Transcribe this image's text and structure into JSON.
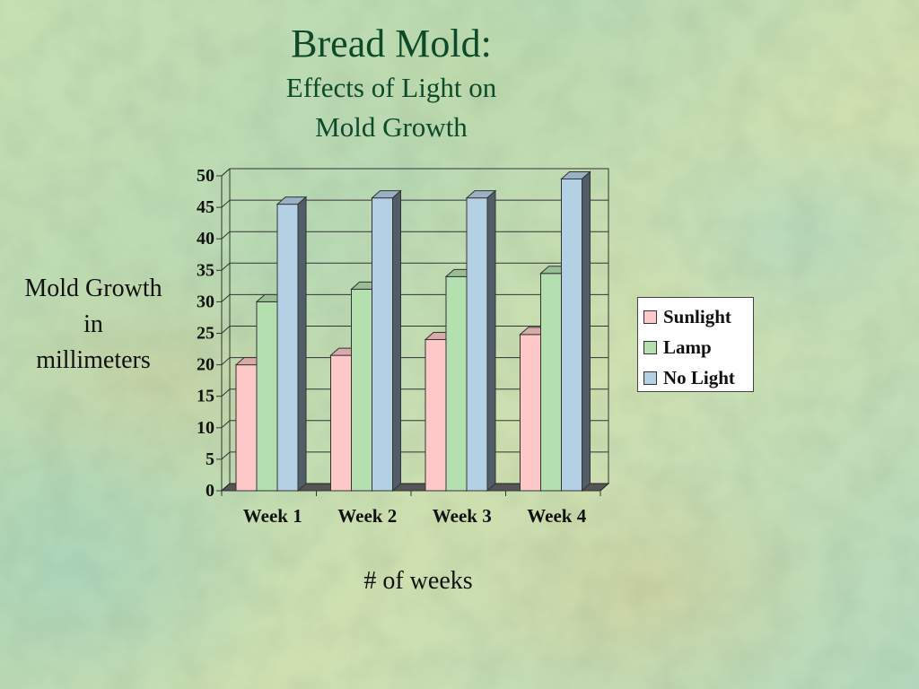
{
  "slide": {
    "title": "Bread Mold:",
    "subtitle_line1": "Effects of Light on",
    "subtitle_line2": "Mold Growth",
    "ylabel_line1": "Mold Growth",
    "ylabel_line2": "in",
    "ylabel_line3": "millimeters",
    "xlabel": "# of weeks"
  },
  "chart_data": {
    "type": "bar",
    "title": "Bread Mold:",
    "subtitle": "Effects of Light on Mold Growth",
    "xlabel": "# of weeks",
    "ylabel": "Mold Growth in millimeters",
    "categories": [
      "Week 1",
      "Week 2",
      "Week 3",
      "Week 4"
    ],
    "series": [
      {
        "name": "Sunlight",
        "values": [
          20,
          21.5,
          24,
          24.8
        ],
        "color": "#ffc8c8"
      },
      {
        "name": "Lamp",
        "values": [
          30,
          32,
          34,
          34.5
        ],
        "color": "#b4e0b0"
      },
      {
        "name": "No Light",
        "values": [
          45.5,
          46.5,
          46.5,
          49.5
        ],
        "color": "#b4d0e4"
      }
    ],
    "ylim": [
      0,
      50
    ],
    "yticks": [
      0,
      5,
      10,
      15,
      20,
      25,
      30,
      35,
      40,
      45,
      50
    ],
    "grid": true,
    "legend_position": "right",
    "style": "3d-bars",
    "background_color": "#c6dfb2",
    "text_color": "#0d4a2a"
  }
}
